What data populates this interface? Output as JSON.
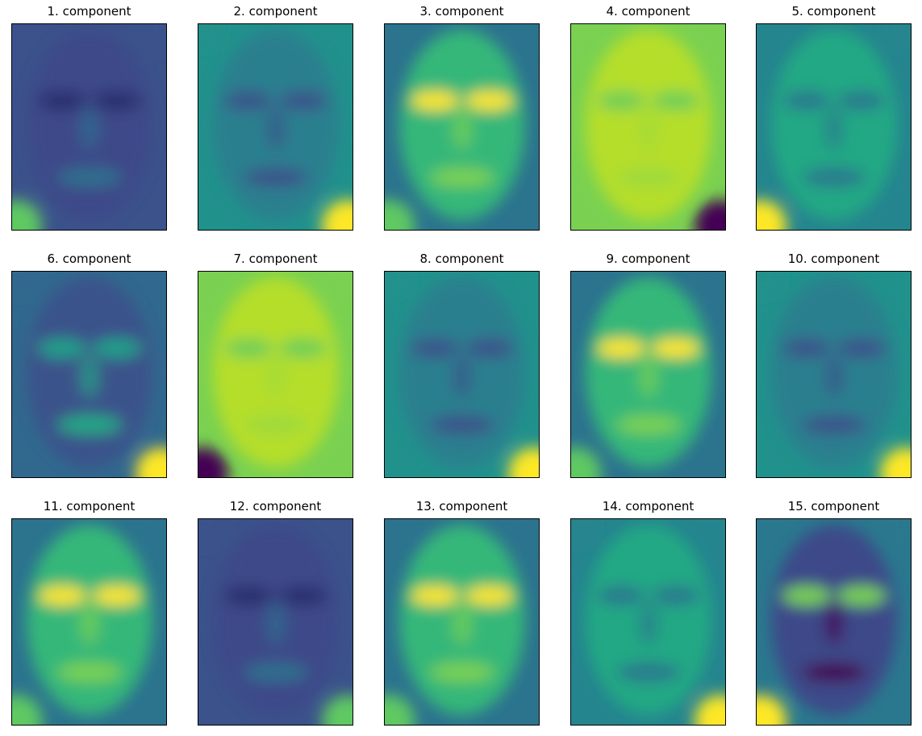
{
  "figure": {
    "panels": [
      {
        "title": "1. component",
        "colormap": "viridis",
        "tone": "dark"
      },
      {
        "title": "2. component",
        "colormap": "viridis",
        "tone": "mid"
      },
      {
        "title": "3. component",
        "colormap": "viridis",
        "tone": "bright-eyes"
      },
      {
        "title": "4. component",
        "colormap": "viridis",
        "tone": "bright"
      },
      {
        "title": "5. component",
        "colormap": "viridis",
        "tone": "flat"
      },
      {
        "title": "6. component",
        "colormap": "viridis",
        "tone": "dark-band"
      },
      {
        "title": "7. component",
        "colormap": "viridis",
        "tone": "bright"
      },
      {
        "title": "8. component",
        "colormap": "viridis",
        "tone": "mid"
      },
      {
        "title": "9. component",
        "colormap": "viridis",
        "tone": "bright-eyes"
      },
      {
        "title": "10. component",
        "colormap": "viridis",
        "tone": "mid"
      },
      {
        "title": "11. component",
        "colormap": "viridis",
        "tone": "bright-eyes"
      },
      {
        "title": "12. component",
        "colormap": "viridis",
        "tone": "dark"
      },
      {
        "title": "13. component",
        "colormap": "viridis",
        "tone": "bright-eyes"
      },
      {
        "title": "14. component",
        "colormap": "viridis",
        "tone": "flat"
      },
      {
        "title": "15. component",
        "colormap": "viridis",
        "tone": "dark-mouth"
      }
    ],
    "colors": {
      "viridis_dark": "#440154",
      "viridis_blue": "#3b528b",
      "viridis_teal": "#21918c",
      "viridis_green": "#5ec962",
      "viridis_yellow": "#fde725"
    }
  }
}
